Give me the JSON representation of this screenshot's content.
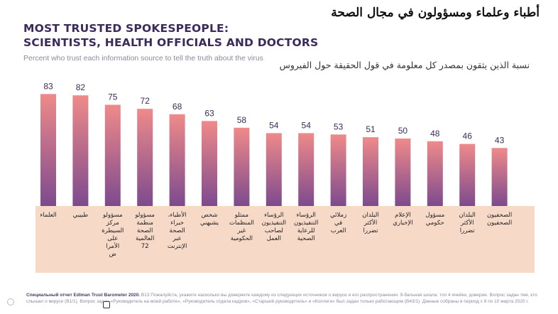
{
  "title_en": "MOST TRUSTED SPOKESPEOPLE:\nSCIENTISTS, HEALTH OFFICIALS AND DOCTORS",
  "title_ar": "أطباء وعلماء ومسؤولون في مجال الصحة",
  "subtitle_en": "Percent who trust each information source to tell the truth about the virus",
  "subtitle_ar": "نسبة الذين يثقون بمصدر كل معلومة في قول الحقيقة حول الفيروس",
  "footnote": {
    "bold": "Специальный отчет Edlman Trust Barometer 2020.",
    "text": " B13 Пожалуйста, укажите насколько вы доверяете каждому из следующих источников о вирусе и его распространении. 9-бальная шкала: топ 4 ячейки, доверие. Вопрос задан тем, кто слышал о вирусе (B1/1). Вопрос задан «Руководитель на моей работе», «Руководитель отдела кадров», «Старший руководитель» и «Коллеги» был задан только работающим (B43/1). Данные собраны в период с 6 по 10 марта 2020 г."
  },
  "chart_data": {
    "type": "bar",
    "title": "MOST TRUSTED SPOKESPEOPLE: SCIENTISTS, HEALTH OFFICIALS AND DOCTORS",
    "categories": [
      "العلماء",
      "طبيبي",
      "مسؤولو مركز السيطرة على الأمراض",
      "مسؤولو منظمة الصحة العالمية 72",
      "الأطباء، خبراء الصحة عبر الإنترنت",
      "شخص يشبهني",
      "ممثلو المنظمات غير الحكومية",
      "الرؤساء التنفيذيون لصاحب العمل",
      "الرؤساء التنفيذيون للرعاية الصحية",
      "زملائي في العرب",
      "البلدان الأكثر تضررا",
      "الإعلام الإخباري",
      "مسؤول حكومي",
      "البلدان الأكثر تضررا",
      "الصحفيون الصحفيون"
    ],
    "category_lines": [
      [
        "العلماء"
      ],
      [
        "طبيبي"
      ],
      [
        "مسؤولو",
        "مركز",
        "السيطرة",
        "على",
        "الأمرا",
        "ض"
      ],
      [
        "مسؤولو",
        "منظمة",
        "الصحة",
        "العالمية",
        "72"
      ],
      [
        "الأطباء،",
        "خبراء",
        "الصحة",
        "عبر",
        "الإنترنت"
      ],
      [
        "شخص",
        "يشبهني"
      ],
      [
        "ممثلو",
        "المنظمات",
        "غير",
        "الحكومية"
      ],
      [
        "الرؤساء",
        "التنفيذيون",
        "لصاحب",
        "العمل"
      ],
      [
        "الرؤساء",
        "التنفيذيون",
        "للرعاية",
        "الصحية"
      ],
      [
        "زملائي",
        "في",
        "العرب"
      ],
      [
        "البلدان",
        "الأكثر",
        "تضررا"
      ],
      [
        "الإعلام",
        "الإخباري"
      ],
      [
        "مسؤول",
        "حكومي"
      ],
      [
        "البلدان",
        "الأكثر",
        "تضررا"
      ],
      [
        "الصحفيون",
        "الصحفيون"
      ]
    ],
    "values": [
      83,
      82,
      75,
      72,
      68,
      63,
      58,
      54,
      54,
      53,
      51,
      50,
      48,
      46,
      43
    ],
    "ylim": [
      0,
      100
    ],
    "colors": {
      "bar_top": "#ef8a8a",
      "bar_bottom": "#7d4a8e",
      "label_panel": "#f7d9c8"
    }
  }
}
